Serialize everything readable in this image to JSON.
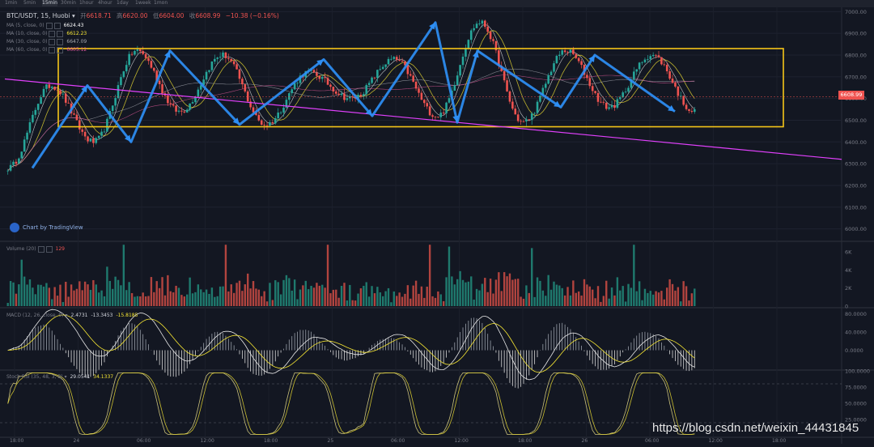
{
  "header": {
    "intervals": [
      "1min",
      "5min",
      "15min",
      "30min",
      "1hour",
      "4hour",
      "1day",
      "1week",
      "1mon"
    ],
    "active_interval": "15min"
  },
  "symbol_line": {
    "pair": "BTC/USDT, 15, Huobi",
    "open_label": "开",
    "open": "6618.71",
    "high_label": "高",
    "high": "6620.00",
    "low_label": "低",
    "low": "6604.00",
    "close_label": "收",
    "close": "6608.99",
    "change": "−10.38 (−0.16%)"
  },
  "ma_lines": [
    {
      "label": "MA (5, close, 0)",
      "value": "6624.43",
      "color": "#ffffff"
    },
    {
      "label": "MA (10, close, 0)",
      "value": "6612.23",
      "color": "#f7e733"
    },
    {
      "label": "MA (30, close, 0)",
      "value": "6647.09",
      "color": "#a6a8b0"
    },
    {
      "label": "MA (60, close, 0)",
      "value": "6605.12",
      "color": "#e05a9a"
    }
  ],
  "volume_line": {
    "label": "Volume (20)",
    "value": "129"
  },
  "macd_line": {
    "label": "MACD (12, 26, close, 9)",
    "v1": "2.4731",
    "v2": "-13.3453",
    "v3": "-15.8185"
  },
  "stoch_line": {
    "label": "Stoch RSI (35, 48, 3, 3)",
    "v1": "29.0541",
    "v2": "34.1337"
  },
  "branding": {
    "tradingview": "Chart by TradingView",
    "watermark": "https://blog.csdn.net/weixin_44431845"
  },
  "colors": {
    "up": "#26a69a",
    "down": "#ef5350",
    "box": "#f5c518",
    "trend": "#e040fb",
    "arrow": "#2e8ff5"
  },
  "chart_data": {
    "type": "candlestick",
    "title": "BTC/USDT, 15, Huobi",
    "price_axis": {
      "ylim": [
        5950,
        7020
      ],
      "ticks": [
        "7000.00",
        "6900.00",
        "6800.00",
        "6700.00",
        "6600.00",
        "6500.00",
        "6400.00",
        "6300.00",
        "6200.00",
        "6100.00",
        "6000.00"
      ],
      "last_price": "6608.99"
    },
    "time_axis": {
      "ticks": [
        "18:00",
        "24",
        "06:00",
        "12:00",
        "18:00",
        "25",
        "06:00",
        "12:00",
        "18:00",
        "26",
        "06:00",
        "12:00",
        "18:00"
      ]
    },
    "swing_points": [
      6280,
      6660,
      6400,
      6820,
      6540,
      6800,
      6480,
      6720,
      6600,
      6780,
      6520,
      6950,
      6490,
      6820,
      6560,
      6800,
      6540
    ],
    "channel_box": {
      "top": 6830,
      "bottom": 6470
    },
    "volume_axis": {
      "ylim": [
        0,
        7000
      ],
      "ticks": [
        "6K",
        "4K",
        "2K",
        "0"
      ]
    },
    "macd_axis": {
      "ylim": [
        -40,
        90
      ],
      "ticks": [
        "80.0000",
        "40.0000",
        "0.0000"
      ]
    },
    "stoch_axis": {
      "ylim": [
        0,
        100
      ],
      "ticks": [
        "100.0000",
        "75.0000",
        "50.0000",
        "25.0000"
      ]
    },
    "grid": true
  }
}
